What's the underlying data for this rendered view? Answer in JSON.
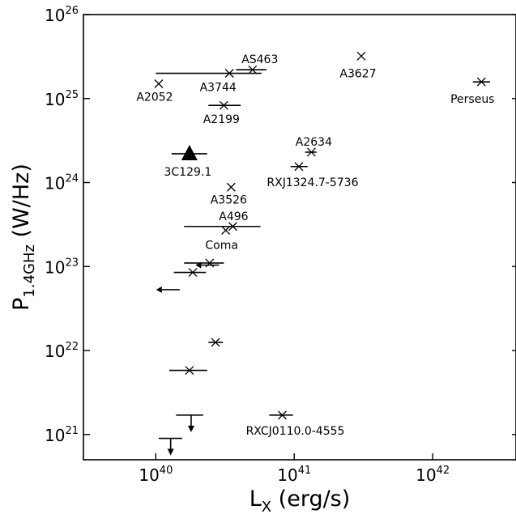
{
  "chart_data": {
    "type": "scatter",
    "title": "",
    "xlabel": {
      "main": "L",
      "sub": "X",
      "tail": " (erg/s)"
    },
    "ylabel": {
      "main": "P",
      "sub": "1.4GHz",
      "tail": " (W/Hz)"
    },
    "xscale": "log",
    "yscale": "log",
    "xlim": [
      3e+39,
      4e+42
    ],
    "ylim": [
      5e+20,
      1e+26
    ],
    "grid": false,
    "legend": "none",
    "xticks": [
      {
        "value": 1e+40,
        "base": "10",
        "exp": "40"
      },
      {
        "value": 1e+41,
        "base": "10",
        "exp": "41"
      },
      {
        "value": 1e+42,
        "base": "10",
        "exp": "42"
      }
    ],
    "yticks": [
      {
        "value": 1e+21,
        "base": "10",
        "exp": "21"
      },
      {
        "value": 1e+22,
        "base": "10",
        "exp": "22"
      },
      {
        "value": 1e+23,
        "base": "10",
        "exp": "23"
      },
      {
        "value": 1e+24,
        "base": "10",
        "exp": "24"
      },
      {
        "value": 1e+25,
        "base": "10",
        "exp": "25"
      },
      {
        "value": 1e+26,
        "base": "10",
        "exp": "26"
      }
    ],
    "points": [
      {
        "label": "A2052",
        "x": 1.05e+40,
        "y": 1.5e+25,
        "xerr": null,
        "marker": "x",
        "limit": null
      },
      {
        "label": "A3744",
        "x": 3.4e+40,
        "y": 2e+25,
        "xerr": [
          1e+40,
          5.8e+40
        ],
        "marker": "x",
        "limit": null
      },
      {
        "label": "AS463",
        "x": 5e+40,
        "y": 2.2e+25,
        "xerr": [
          3.8e+40,
          6.3e+40
        ],
        "marker": "x",
        "limit": null
      },
      {
        "label": "A3627",
        "x": 3.05e+41,
        "y": 3.2e+25,
        "xerr": null,
        "marker": "x",
        "limit": null
      },
      {
        "label": "Perseus",
        "x": 2.25e+42,
        "y": 1.58e+25,
        "xerr": [
          1.95e+42,
          2.6e+42
        ],
        "marker": "x",
        "limit": null
      },
      {
        "label": "A2199",
        "x": 3.1e+40,
        "y": 8.3e+24,
        "xerr": [
          2.4e+40,
          4.1e+40
        ],
        "marker": "x",
        "limit": null
      },
      {
        "label": "3C129.1",
        "x": 1.75e+40,
        "y": 2.2e+24,
        "xerr": [
          1.3e+40,
          2.35e+40
        ],
        "marker": "triangle",
        "limit": null
      },
      {
        "label": "A2634",
        "x": 1.33e+41,
        "y": 2.3e+24,
        "xerr": [
          1.2e+41,
          1.45e+41
        ],
        "marker": "x",
        "limit": null
      },
      {
        "label": "RXJ1324.7-5736",
        "x": 1.08e+41,
        "y": 1.55e+24,
        "xerr": [
          9.4e+40,
          1.25e+41
        ],
        "marker": "x",
        "limit": null
      },
      {
        "label": "A3526",
        "x": 3.5e+40,
        "y": 8.8e+23,
        "xerr": null,
        "marker": "x",
        "limit": null
      },
      {
        "label": "A496",
        "x": 3.6e+40,
        "y": 3e+23,
        "xerr": [
          1.6e+40,
          5.7e+40
        ],
        "marker": "x",
        "limit": null
      },
      {
        "label": "Coma",
        "x": 3.2e+40,
        "y": 2.7e+23,
        "xerr": null,
        "marker": "x",
        "limit": null
      },
      {
        "label": "",
        "x": 2.45e+40,
        "y": 1.1e+23,
        "xerr": [
          1.6e+40,
          3.1e+40
        ],
        "marker": "x",
        "limit": null
      },
      {
        "label": "",
        "x": 2.5e+40,
        "y": 1.04e+23,
        "xerr": null,
        "marker": "none",
        "limit": "x-upper"
      },
      {
        "label": "",
        "x": 1.85e+40,
        "y": 8.5e+22,
        "xerr": [
          1.35e+40,
          2.3e+40
        ],
        "marker": "x",
        "limit": null
      },
      {
        "label": "",
        "x": 1.3e+40,
        "y": 5.3e+22,
        "xerr": null,
        "marker": "none",
        "limit": "x-upper"
      },
      {
        "label": "",
        "x": 2.7e+40,
        "y": 1.25e+22,
        "xerr": [
          2.4e+40,
          3.05e+40
        ],
        "marker": "x",
        "limit": null
      },
      {
        "label": "",
        "x": 1.75e+40,
        "y": 5.8e+21,
        "xerr": [
          1.25e+40,
          2.35e+40
        ],
        "marker": "x",
        "limit": null
      },
      {
        "label": "RXCJ0110.0-4555",
        "x": 8.2e+40,
        "y": 1.7e+21,
        "xerr": [
          6.6e+40,
          9.8e+40
        ],
        "marker": "x",
        "limit": null
      },
      {
        "label": "",
        "x": 1.8e+40,
        "y": 1.7e+21,
        "xerr": [
          1.4e+40,
          2.2e+40
        ],
        "marker": "none",
        "limit": "y-upper"
      },
      {
        "label": "",
        "x": 1.28e+40,
        "y": 9e+20,
        "xerr": [
          1.05e+40,
          1.55e+40
        ],
        "marker": "none",
        "limit": "y-upper"
      }
    ]
  }
}
